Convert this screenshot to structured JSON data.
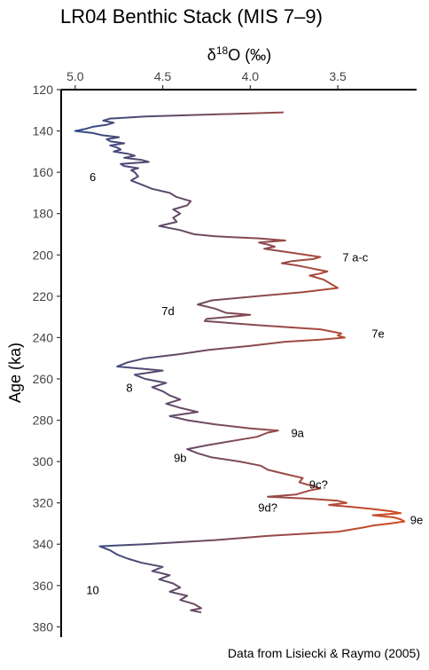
{
  "chart_data": {
    "type": "line",
    "title": "LR04 Benthic Stack (MIS 7–9)",
    "caption": "Data from Lisiecki & Raymo (2005)",
    "xlabel_base": "δ",
    "xlabel_sup": "18",
    "xlabel_rest": "O (‰)",
    "ylabel": "Age (ka)",
    "x_axis_position": "top",
    "x_reversed": true,
    "xlim": [
      5.08,
      3.05
    ],
    "ylim": [
      120,
      385
    ],
    "x_ticks": [
      5.0,
      4.5,
      4.0,
      3.5
    ],
    "x_tick_labels": [
      "5.0",
      "4.5",
      "4.0",
      "3.5"
    ],
    "y_ticks": [
      120,
      140,
      160,
      180,
      200,
      220,
      240,
      260,
      280,
      300,
      320,
      340,
      360,
      380
    ],
    "y_tick_labels": [
      "120",
      "140",
      "160",
      "180",
      "200",
      "220",
      "240",
      "260",
      "280",
      "300",
      "320",
      "340",
      "360",
      "380"
    ],
    "grid": false,
    "color_gradient": {
      "light_isotope": "#d94a1c",
      "heavy_isotope": "#2a4a8c"
    },
    "series": [
      {
        "points": [
          [
            131,
            3.81
          ],
          [
            132,
            4.2
          ],
          [
            133,
            4.6
          ],
          [
            134,
            4.8
          ],
          [
            135,
            4.84
          ],
          [
            136,
            4.78
          ],
          [
            137,
            4.82
          ],
          [
            138,
            4.9
          ],
          [
            139,
            4.94
          ],
          [
            140,
            5.0
          ],
          [
            141,
            4.9
          ],
          [
            142,
            4.85
          ],
          [
            143,
            4.75
          ],
          [
            144,
            4.82
          ],
          [
            145,
            4.8
          ],
          [
            146,
            4.72
          ],
          [
            147,
            4.8
          ],
          [
            148,
            4.76
          ],
          [
            149,
            4.74
          ],
          [
            150,
            4.78
          ],
          [
            151,
            4.7
          ],
          [
            152,
            4.66
          ],
          [
            153,
            4.72
          ],
          [
            154,
            4.62
          ],
          [
            155,
            4.58
          ],
          [
            156,
            4.74
          ],
          [
            157,
            4.72
          ],
          [
            158,
            4.64
          ],
          [
            159,
            4.68
          ],
          [
            160,
            4.66
          ],
          [
            162,
            4.64
          ],
          [
            164,
            4.68
          ],
          [
            166,
            4.62
          ],
          [
            168,
            4.56
          ],
          [
            170,
            4.46
          ],
          [
            172,
            4.42
          ],
          [
            174,
            4.34
          ],
          [
            176,
            4.36
          ],
          [
            178,
            4.44
          ],
          [
            180,
            4.4
          ],
          [
            182,
            4.44
          ],
          [
            184,
            4.42
          ],
          [
            186,
            4.52
          ],
          [
            188,
            4.4
          ],
          [
            190,
            4.32
          ],
          [
            191,
            4.2
          ],
          [
            192,
            3.95
          ],
          [
            193,
            3.8
          ],
          [
            194,
            3.95
          ],
          [
            195,
            3.9
          ],
          [
            196,
            3.86
          ],
          [
            197,
            3.92
          ],
          [
            198,
            3.84
          ],
          [
            199,
            3.76
          ],
          [
            200,
            3.68
          ],
          [
            201,
            3.6
          ],
          [
            202,
            3.64
          ],
          [
            203,
            3.76
          ],
          [
            204,
            3.82
          ],
          [
            205,
            3.74
          ],
          [
            206,
            3.68
          ],
          [
            207,
            3.62
          ],
          [
            208,
            3.56
          ],
          [
            209,
            3.6
          ],
          [
            210,
            3.66
          ],
          [
            212,
            3.58
          ],
          [
            214,
            3.54
          ],
          [
            216,
            3.5
          ],
          [
            218,
            3.7
          ],
          [
            220,
            3.96
          ],
          [
            222,
            4.22
          ],
          [
            224,
            4.3
          ],
          [
            226,
            4.2
          ],
          [
            228,
            4.14
          ],
          [
            229,
            4.0
          ],
          [
            230,
            4.12
          ],
          [
            231,
            4.25
          ],
          [
            232,
            4.26
          ],
          [
            234,
            3.96
          ],
          [
            236,
            3.6
          ],
          [
            237,
            3.54
          ],
          [
            238,
            3.48
          ],
          [
            239,
            3.5
          ],
          [
            240,
            3.46
          ],
          [
            241,
            3.6
          ],
          [
            242,
            3.8
          ],
          [
            244,
            4.0
          ],
          [
            246,
            4.24
          ],
          [
            248,
            4.4
          ],
          [
            250,
            4.6
          ],
          [
            252,
            4.7
          ],
          [
            254,
            4.76
          ],
          [
            256,
            4.5
          ],
          [
            258,
            4.66
          ],
          [
            260,
            4.6
          ],
          [
            262,
            4.48
          ],
          [
            264,
            4.56
          ],
          [
            266,
            4.5
          ],
          [
            268,
            4.46
          ],
          [
            270,
            4.4
          ],
          [
            272,
            4.48
          ],
          [
            274,
            4.4
          ],
          [
            276,
            4.3
          ],
          [
            278,
            4.46
          ],
          [
            280,
            4.36
          ],
          [
            282,
            4.2
          ],
          [
            284,
            4.0
          ],
          [
            285,
            3.84
          ],
          [
            286,
            3.9
          ],
          [
            288,
            3.96
          ],
          [
            290,
            4.1
          ],
          [
            292,
            4.24
          ],
          [
            294,
            4.36
          ],
          [
            296,
            4.3
          ],
          [
            298,
            4.22
          ],
          [
            300,
            4.06
          ],
          [
            302,
            3.94
          ],
          [
            304,
            3.9
          ],
          [
            306,
            3.8
          ],
          [
            308,
            3.7
          ],
          [
            310,
            3.72
          ],
          [
            312,
            3.64
          ],
          [
            313,
            3.6
          ],
          [
            314,
            3.66
          ],
          [
            316,
            3.74
          ],
          [
            317,
            3.9
          ],
          [
            318,
            3.66
          ],
          [
            319,
            3.5
          ],
          [
            320,
            3.45
          ],
          [
            321,
            3.55
          ],
          [
            322,
            3.42
          ],
          [
            323,
            3.3
          ],
          [
            324,
            3.2
          ],
          [
            325,
            3.14
          ],
          [
            326,
            3.3
          ],
          [
            327,
            3.18
          ],
          [
            328,
            3.14
          ],
          [
            329,
            3.12
          ],
          [
            330,
            3.2
          ],
          [
            331,
            3.3
          ],
          [
            332,
            3.36
          ],
          [
            334,
            3.5
          ],
          [
            336,
            3.9
          ],
          [
            338,
            4.2
          ],
          [
            340,
            4.6
          ],
          [
            341,
            4.86
          ],
          [
            343,
            4.8
          ],
          [
            345,
            4.76
          ],
          [
            347,
            4.7
          ],
          [
            349,
            4.62
          ],
          [
            351,
            4.5
          ],
          [
            353,
            4.56
          ],
          [
            355,
            4.46
          ],
          [
            357,
            4.52
          ],
          [
            359,
            4.44
          ],
          [
            361,
            4.4
          ],
          [
            363,
            4.46
          ],
          [
            365,
            4.36
          ],
          [
            367,
            4.4
          ],
          [
            369,
            4.32
          ],
          [
            371,
            4.28
          ],
          [
            372,
            4.34
          ],
          [
            373,
            4.28
          ]
        ]
      }
    ],
    "annotations": [
      {
        "text": "6",
        "x": 4.9,
        "y": 162
      },
      {
        "text": "7 a-c",
        "x": 3.4,
        "y": 201
      },
      {
        "text": "7d",
        "x": 4.47,
        "y": 227
      },
      {
        "text": "7e",
        "x": 3.27,
        "y": 238
      },
      {
        "text": "8",
        "x": 4.69,
        "y": 264
      },
      {
        "text": "9a",
        "x": 3.73,
        "y": 286
      },
      {
        "text": "9b",
        "x": 4.4,
        "y": 298
      },
      {
        "text": "9c?",
        "x": 3.61,
        "y": 311
      },
      {
        "text": "9d?",
        "x": 3.9,
        "y": 322
      },
      {
        "text": "9e",
        "x": 3.05,
        "y": 328
      },
      {
        "text": "10",
        "x": 4.9,
        "y": 362
      }
    ]
  }
}
